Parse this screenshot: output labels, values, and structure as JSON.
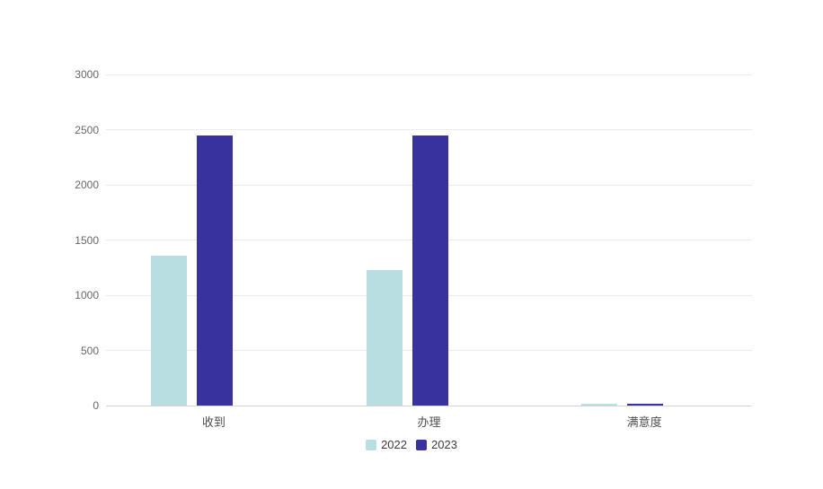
{
  "page": {
    "background_color": "#ffffff"
  },
  "chart_data": {
    "type": "bar",
    "title": "",
    "xlabel": "",
    "ylabel": "",
    "categories": [
      "收到",
      "办理",
      "满意度"
    ],
    "series": [
      {
        "name": "2022",
        "color": "#b9dee2",
        "values": [
          1355,
          1225,
          15
        ]
      },
      {
        "name": "2023",
        "color": "#38329e",
        "values": [
          2450,
          2450,
          20
        ]
      }
    ],
    "ylim": [
      0,
      3000
    ],
    "yticks": [
      0,
      500,
      1000,
      1500,
      2000,
      2500,
      3000
    ],
    "grid": true,
    "legend_position": "bottom",
    "legend_labels": [
      "2022",
      "2023"
    ],
    "colors": {
      "grid_line": "#ebebeb",
      "axis_line": "#d4d4d4",
      "y_tick_label": "#666666",
      "category_label": "#4d4d4d",
      "legend_text": "#3a3a3a"
    }
  }
}
